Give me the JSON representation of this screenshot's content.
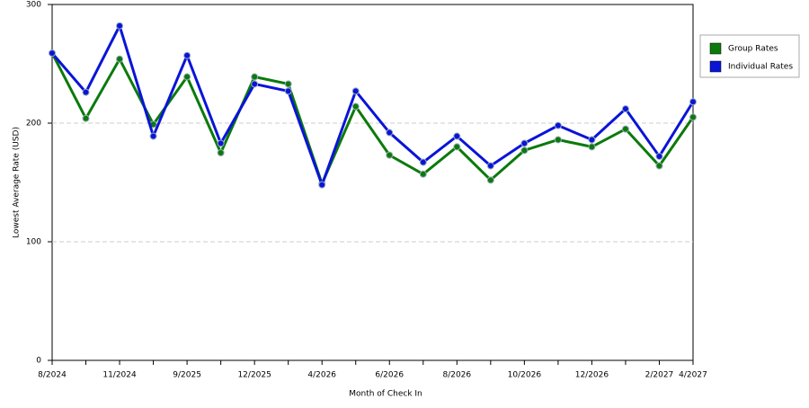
{
  "chart_data": {
    "type": "line",
    "x_label": "Month of Check In",
    "y_label": "Lowest Average Rate (USD)",
    "categories": [
      "8/2024",
      null,
      "11/2024",
      null,
      "9/2025",
      null,
      "12/2025",
      null,
      "4/2026",
      null,
      "6/2026",
      null,
      "8/2026",
      null,
      "10/2026",
      null,
      "12/2026",
      null,
      "2/2027",
      "4/2027"
    ],
    "series": [
      {
        "name": "Group Rates",
        "color": "#0b7a0b",
        "values": [
          259,
          204,
          254,
          199,
          239,
          175,
          239,
          233,
          149,
          214,
          173,
          157,
          180,
          152,
          177,
          186,
          180,
          195,
          164,
          205
        ]
      },
      {
        "name": "Individual Rates",
        "color": "#0a14d8",
        "values": [
          259,
          226,
          282,
          189,
          257,
          183,
          233,
          227,
          148,
          227,
          192,
          167,
          189,
          164,
          183,
          198,
          186,
          212,
          172,
          218
        ]
      }
    ],
    "ylim": [
      0,
      300
    ],
    "yticks": [
      0,
      100,
      200,
      300
    ],
    "grid": true,
    "legend": "right"
  }
}
